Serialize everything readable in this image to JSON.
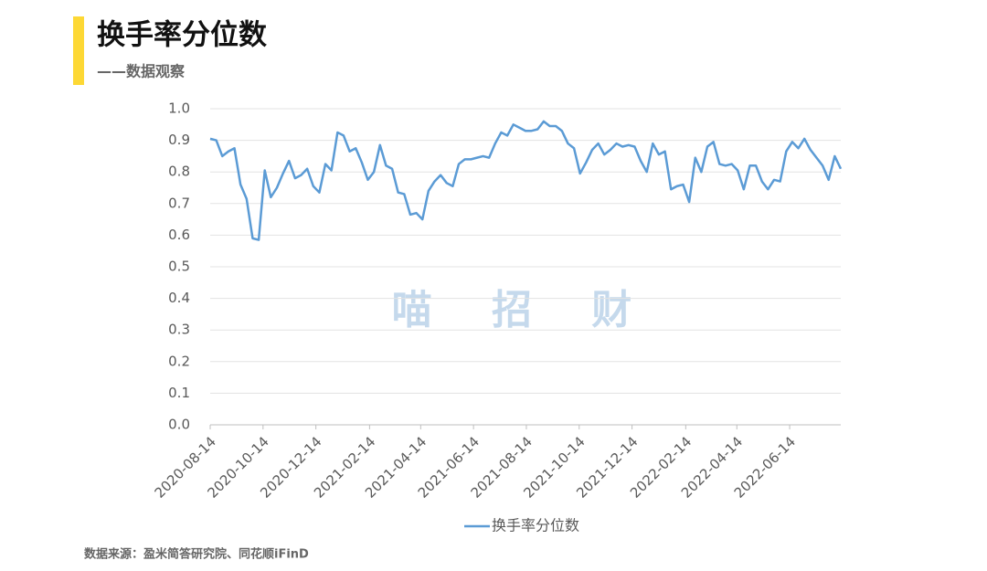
{
  "chart_data": {
    "type": "line",
    "title": "换手率分位数",
    "subtitle": "——数据观察",
    "watermark": "喵 招 财",
    "source": "数据来源：盈米简答研究院、同花顺iFinD",
    "x": [
      "2020-08-14",
      "2020-08-21",
      "2020-08-28",
      "2020-09-04",
      "2020-09-11",
      "2020-09-18",
      "2020-09-25",
      "2020-10-02",
      "2020-10-09",
      "2020-10-16",
      "2020-10-23",
      "2020-10-30",
      "2020-11-06",
      "2020-11-13",
      "2020-11-20",
      "2020-11-27",
      "2020-12-04",
      "2020-12-11",
      "2020-12-18",
      "2020-12-25",
      "2021-01-01",
      "2021-01-08",
      "2021-01-15",
      "2021-01-22",
      "2021-01-29",
      "2021-02-05",
      "2021-02-12",
      "2021-02-19",
      "2021-02-26",
      "2021-03-05",
      "2021-03-12",
      "2021-03-19",
      "2021-03-26",
      "2021-04-02",
      "2021-04-09",
      "2021-04-16",
      "2021-04-23",
      "2021-04-30",
      "2021-05-07",
      "2021-05-14",
      "2021-05-21",
      "2021-05-28",
      "2021-06-04",
      "2021-06-11",
      "2021-06-18",
      "2021-06-25",
      "2021-07-02",
      "2021-07-09",
      "2021-07-16",
      "2021-07-23",
      "2021-07-30",
      "2021-08-06",
      "2021-08-13",
      "2021-08-20",
      "2021-08-27",
      "2021-09-03",
      "2021-09-10",
      "2021-09-17",
      "2021-09-24",
      "2021-10-01",
      "2021-10-08",
      "2021-10-15",
      "2021-10-22",
      "2021-10-29",
      "2021-11-05",
      "2021-11-12",
      "2021-11-19",
      "2021-11-26",
      "2021-12-03",
      "2021-12-10",
      "2021-12-17",
      "2021-12-24",
      "2021-12-31",
      "2022-01-07",
      "2022-01-14",
      "2022-01-21",
      "2022-01-28",
      "2022-02-04",
      "2022-02-11",
      "2022-02-18",
      "2022-02-25",
      "2022-03-04",
      "2022-03-11",
      "2022-03-18",
      "2022-03-25",
      "2022-04-01",
      "2022-04-08",
      "2022-04-15",
      "2022-04-22",
      "2022-04-29",
      "2022-05-06",
      "2022-05-13",
      "2022-05-20",
      "2022-05-27",
      "2022-06-03",
      "2022-06-10",
      "2022-06-17",
      "2022-06-24",
      "2022-07-01",
      "2022-07-08",
      "2022-07-15",
      "2022-07-22",
      "2022-07-29",
      "2022-08-05",
      "2022-08-12"
    ],
    "series": [
      {
        "name": "换手率分位数",
        "color": "#5b9bd5",
        "values": [
          0.905,
          0.9,
          0.85,
          0.865,
          0.875,
          0.76,
          0.715,
          0.59,
          0.585,
          0.805,
          0.72,
          0.75,
          0.795,
          0.835,
          0.78,
          0.79,
          0.81,
          0.755,
          0.735,
          0.825,
          0.805,
          0.925,
          0.915,
          0.865,
          0.875,
          0.83,
          0.775,
          0.8,
          0.885,
          0.82,
          0.81,
          0.735,
          0.73,
          0.665,
          0.67,
          0.65,
          0.74,
          0.77,
          0.79,
          0.765,
          0.755,
          0.825,
          0.84,
          0.84,
          0.845,
          0.85,
          0.845,
          0.89,
          0.925,
          0.915,
          0.95,
          0.94,
          0.93,
          0.93,
          0.935,
          0.96,
          0.945,
          0.945,
          0.93,
          0.89,
          0.875,
          0.795,
          0.83,
          0.87,
          0.89,
          0.855,
          0.87,
          0.89,
          0.88,
          0.885,
          0.88,
          0.835,
          0.8,
          0.89,
          0.855,
          0.865,
          0.745,
          0.755,
          0.76,
          0.705,
          0.845,
          0.8,
          0.88,
          0.895,
          0.825,
          0.82,
          0.825,
          0.805,
          0.745,
          0.82,
          0.82,
          0.77,
          0.745,
          0.775,
          0.77,
          0.865,
          0.895,
          0.875,
          0.905,
          0.87,
          0.845,
          0.82,
          0.775,
          0.85,
          0.81
        ]
      }
    ],
    "xlim": [
      "2020-08-14",
      "2022-08-12"
    ],
    "xticks": [
      "2020-08-14",
      "2020-10-14",
      "2020-12-14",
      "2021-02-14",
      "2021-04-14",
      "2021-06-14",
      "2021-08-14",
      "2021-10-14",
      "2021-12-14",
      "2022-02-14",
      "2022-04-14",
      "2022-06-14"
    ],
    "ylim": [
      0,
      1
    ],
    "yticks": [
      {
        "value": 0,
        "label": "0.0"
      },
      0.1,
      0.2,
      0.3,
      0.4,
      0.5,
      0.6,
      0.7,
      0.8,
      0.9,
      {
        "value": 1,
        "label": "1.0"
      }
    ],
    "grid": true,
    "legend": "bottom"
  }
}
